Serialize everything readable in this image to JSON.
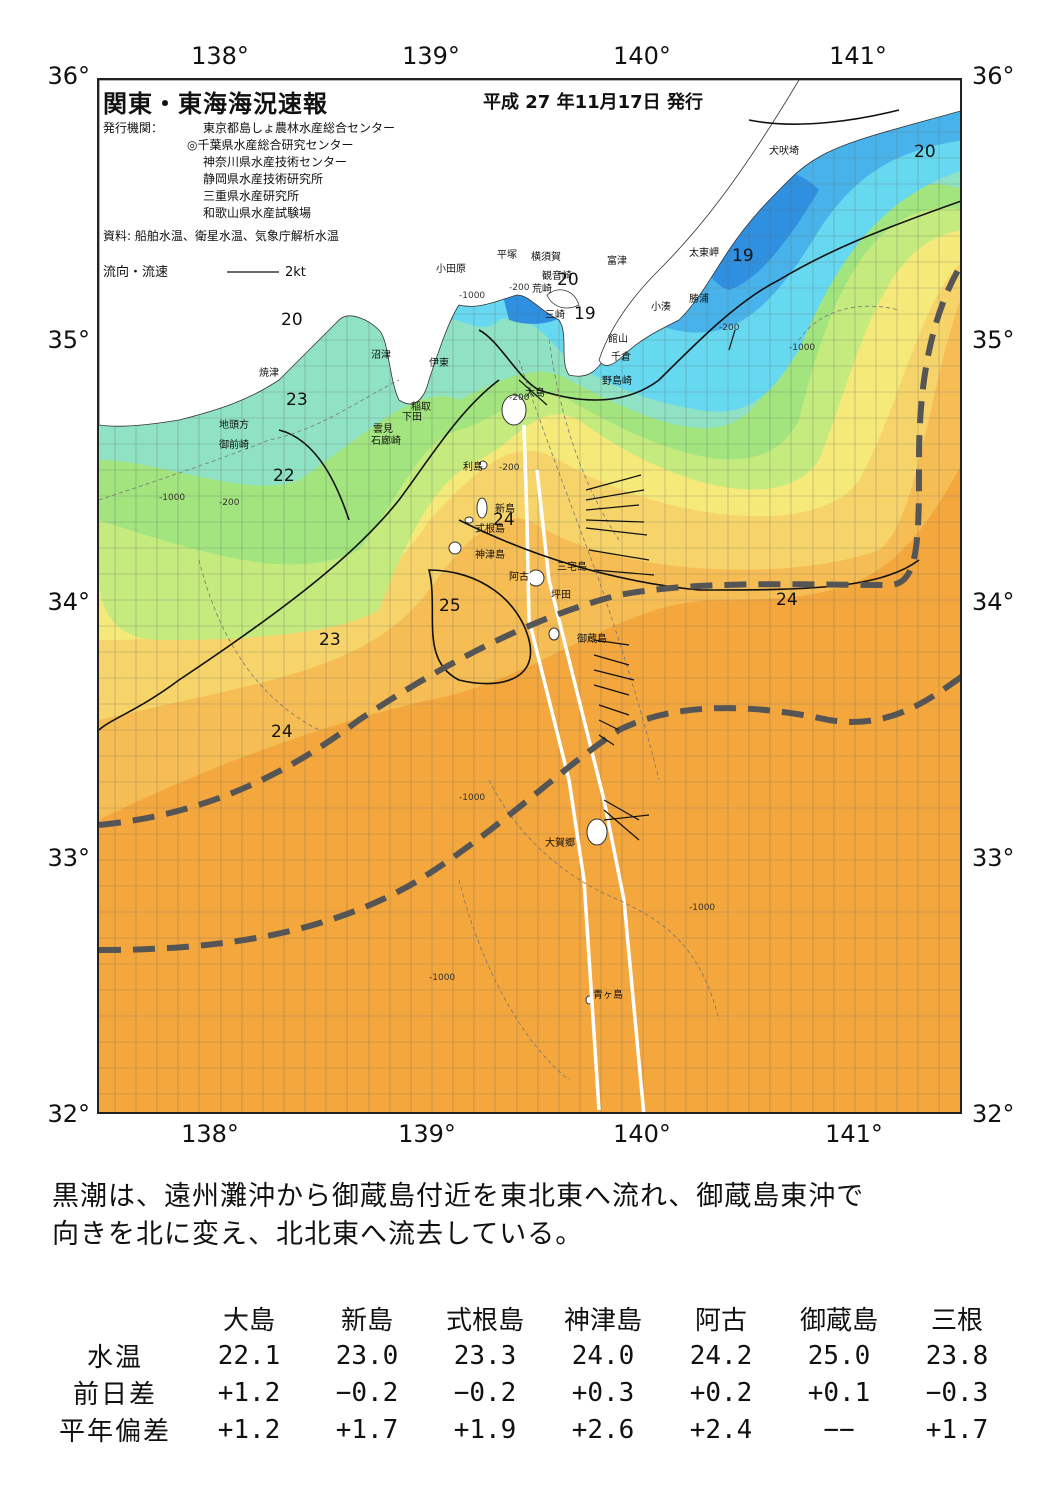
{
  "map": {
    "title": "関東・東海海況速報",
    "issue_date": "平成 27 年11月17日 発行",
    "issuer_label": "発行機関：",
    "issuers": [
      "東京都島しょ農林水産総合センター",
      "◎千葉県水産総合研究センター",
      "神奈川県水産技術センター",
      "静岡県水産技術研究所",
      "三重県水産研究所",
      "和歌山県水産試験場"
    ],
    "sources": "資料: 船舶水温、衛星水温、気象庁解析水温",
    "legend_label": "流向・流速",
    "legend_speed": "2kt",
    "lon_labels": [
      "138°",
      "139°",
      "140°",
      "141°"
    ],
    "lat_labels": [
      "36°",
      "35°",
      "34°",
      "33°",
      "32°"
    ],
    "colors": {
      "t19": "#2f8fe0",
      "t20": "#48b3ea",
      "t21": "#66d8f0",
      "t22": "#8fe3c4",
      "t22b": "#a2e57e",
      "t23": "#c5eb7e",
      "t23b": "#f5e97a",
      "t24": "#f7d46a",
      "t24b": "#f7bd55",
      "t25": "#f4a73c",
      "land": "#ffffff",
      "kuroshio_line": "#555555"
    },
    "place_labels": [
      "犬吠埼",
      "太東岬",
      "勝浦",
      "小湊",
      "富津",
      "横須賀",
      "観音崎",
      "平塚",
      "小田原",
      "荒崎",
      "三崎",
      "館山",
      "千倉",
      "野島崎",
      "沼津",
      "伊東",
      "焼津",
      "稲取",
      "下田",
      "雲見",
      "石廊崎",
      "地頭方",
      "御前崎",
      "大島",
      "利島",
      "新島",
      "式根島",
      "神津島",
      "三宅島",
      "阿古",
      "坪田",
      "御蔵島",
      "大賀郷",
      "青ヶ島"
    ],
    "isotherm_labels": [
      "20",
      "19",
      "20",
      "19",
      "20",
      "23",
      "22",
      "24",
      "25",
      "23",
      "24",
      "24"
    ],
    "depth_labels": [
      "-200",
      "-1000"
    ]
  },
  "summary_text": [
    "黒潮は、遠州灘沖から御蔵島付近を東北東へ流れ、御蔵島東沖で",
    "向きを北に変え、北北東へ流去している。"
  ],
  "table": {
    "columns": [
      "大島",
      "新島",
      "式根島",
      "神津島",
      "阿古",
      "御蔵島",
      "三根"
    ],
    "rows": [
      {
        "label": "水温",
        "values": [
          "22.1",
          "23.0",
          "23.3",
          "24.0",
          "24.2",
          "25.0",
          "23.8"
        ]
      },
      {
        "label": "前日差",
        "values": [
          "+1.2",
          "−0.2",
          "−0.2",
          "+0.3",
          "+0.2",
          "+0.1",
          "−0.3"
        ]
      },
      {
        "label": "平年偏差",
        "values": [
          "+1.2",
          "+1.7",
          "+1.9",
          "+2.6",
          "+2.4",
          "−−",
          "+1.7"
        ]
      }
    ]
  }
}
